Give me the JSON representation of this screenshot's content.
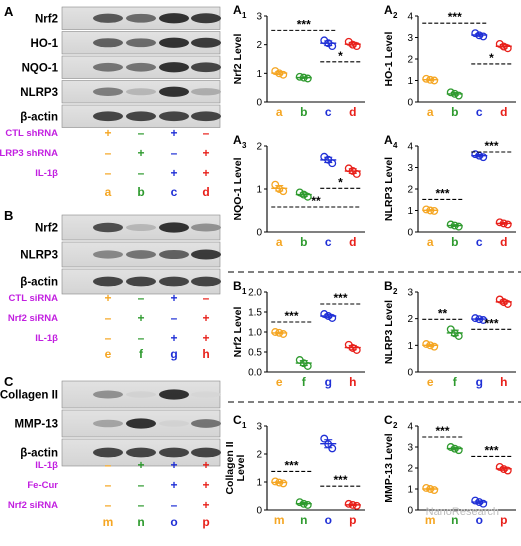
{
  "panels": {
    "A": {
      "label": "A",
      "blots": [
        "Nrf2",
        "HO-1",
        "NQO-1",
        "NLRP3",
        "β-actin"
      ],
      "treatments": [
        {
          "name": "CTL shRNA",
          "signs": [
            "+",
            "–",
            "+",
            "–"
          ]
        },
        {
          "name": "NLRP3 shRNA",
          "signs": [
            "–",
            "+",
            "–",
            "+"
          ]
        },
        {
          "name": "IL-1β",
          "signs": [
            "–",
            "–",
            "+",
            "+"
          ]
        }
      ],
      "groups": [
        "a",
        "b",
        "c",
        "d"
      ]
    },
    "B": {
      "label": "B",
      "blots": [
        "Nrf2",
        "NLRP3",
        "β-actin"
      ],
      "treatments": [
        {
          "name": "CTL siRNA",
          "signs": [
            "+",
            "–",
            "+",
            "–"
          ]
        },
        {
          "name": "Nrf2 siRNA",
          "signs": [
            "–",
            "+",
            "–",
            "+"
          ]
        },
        {
          "name": "IL-1β",
          "signs": [
            "–",
            "–",
            "+",
            "+"
          ]
        }
      ],
      "groups": [
        "e",
        "f",
        "g",
        "h"
      ]
    },
    "C": {
      "label": "C",
      "blots": [
        "Collagen II",
        "MMP-13",
        "β-actin"
      ],
      "treatments": [
        {
          "name": "IL-1β",
          "signs": [
            "–",
            "+",
            "+",
            "+"
          ]
        },
        {
          "name": "Fe-Cur",
          "signs": [
            "–",
            "–",
            "+",
            "+"
          ]
        },
        {
          "name": "Nrf2 siRNA",
          "signs": [
            "–",
            "–",
            "–",
            "+"
          ]
        }
      ],
      "groups": [
        "m",
        "n",
        "o",
        "p"
      ]
    }
  },
  "colors": {
    "g1": "#f5a623",
    "g2": "#2e9a2e",
    "g3": "#1f2fd6",
    "g4": "#e8201a",
    "treat": "#c21fe0"
  },
  "watermark": "NanoResearch",
  "chart_data": [
    {
      "id": "A1",
      "label": "A",
      "sub": "1",
      "type": "scatter",
      "ylabel": "Nrf2 Level",
      "categories": [
        "a",
        "b",
        "c",
        "d"
      ],
      "ylim": [
        0,
        3
      ],
      "yticks": [
        0,
        1,
        2,
        3
      ],
      "values": [
        [
          1.08,
          0.95,
          1.0
        ],
        [
          0.88,
          0.82,
          0.85
        ],
        [
          2.15,
          1.95,
          2.05
        ],
        [
          2.1,
          1.95,
          2.0
        ]
      ],
      "annotations": [
        {
          "text": "***",
          "from": 0,
          "to": 2
        },
        {
          "text": "*",
          "from": 2,
          "to": 3
        }
      ]
    },
    {
      "id": "A2",
      "label": "A",
      "sub": "2",
      "type": "scatter",
      "ylabel": "HO-1 Level",
      "categories": [
        "a",
        "b",
        "c",
        "d"
      ],
      "ylim": [
        0,
        4
      ],
      "yticks": [
        0,
        1,
        2,
        3,
        4
      ],
      "values": [
        [
          1.08,
          1.0,
          1.03
        ],
        [
          0.45,
          0.3,
          0.38
        ],
        [
          3.2,
          3.05,
          3.1
        ],
        [
          2.7,
          2.5,
          2.58
        ]
      ],
      "annotations": [
        {
          "text": "***",
          "from": 0,
          "to": 2
        },
        {
          "text": "*",
          "from": 2,
          "to": 3
        }
      ]
    },
    {
      "id": "A3",
      "label": "A",
      "sub": "3",
      "type": "scatter",
      "ylabel": "NQO-1 Level",
      "categories": [
        "a",
        "b",
        "c",
        "d"
      ],
      "ylim": [
        0,
        2
      ],
      "yticks": [
        0,
        1,
        2
      ],
      "values": [
        [
          1.1,
          0.95,
          1.0
        ],
        [
          0.92,
          0.82,
          0.87
        ],
        [
          1.75,
          1.6,
          1.68
        ],
        [
          1.48,
          1.35,
          1.42
        ]
      ],
      "annotations": [
        {
          "text": "**",
          "from": 0,
          "to": 3
        },
        {
          "text": "*",
          "from": 2,
          "to": 3
        }
      ]
    },
    {
      "id": "A4",
      "label": "A",
      "sub": "4",
      "type": "scatter",
      "ylabel": "NLRP3 Level",
      "categories": [
        "a",
        "b",
        "c",
        "d"
      ],
      "ylim": [
        0,
        4
      ],
      "yticks": [
        0,
        1,
        2,
        3,
        4
      ],
      "values": [
        [
          1.05,
          0.98,
          1.0
        ],
        [
          0.35,
          0.25,
          0.3
        ],
        [
          3.62,
          3.48,
          3.55
        ],
        [
          0.45,
          0.35,
          0.4
        ]
      ],
      "annotations": [
        {
          "text": "***",
          "from": 0,
          "to": 1
        },
        {
          "text": "***",
          "from": 2,
          "to": 3
        }
      ]
    },
    {
      "id": "B1",
      "label": "B",
      "sub": "1",
      "type": "scatter",
      "ylabel": "Nrf2 Level",
      "categories": [
        "e",
        "f",
        "g",
        "h"
      ],
      "ylim": [
        0,
        2
      ],
      "yticks": [
        0.0,
        0.5,
        1.0,
        1.5,
        2.0
      ],
      "values": [
        [
          1.0,
          0.95,
          0.98
        ],
        [
          0.3,
          0.15,
          0.22
        ],
        [
          1.45,
          1.35,
          1.4
        ],
        [
          0.68,
          0.55,
          0.6
        ]
      ],
      "annotations": [
        {
          "text": "***",
          "from": 0,
          "to": 1
        },
        {
          "text": "***",
          "from": 2,
          "to": 3
        }
      ]
    },
    {
      "id": "B2",
      "label": "B",
      "sub": "2",
      "type": "scatter",
      "ylabel": "NLRP3 Level",
      "categories": [
        "e",
        "f",
        "g",
        "h"
      ],
      "ylim": [
        0,
        3
      ],
      "yticks": [
        0,
        1,
        2,
        3
      ],
      "values": [
        [
          1.05,
          0.95,
          1.0
        ],
        [
          1.6,
          1.35,
          1.45
        ],
        [
          2.02,
          1.95,
          1.98
        ],
        [
          2.72,
          2.55,
          2.62
        ]
      ],
      "annotations": [
        {
          "text": "**",
          "from": 0,
          "to": 1
        },
        {
          "text": "***",
          "from": 2,
          "to": 3
        }
      ]
    },
    {
      "id": "C1",
      "label": "C",
      "sub": "1",
      "type": "scatter",
      "ylabel": "Collagen II Level",
      "categories": [
        "m",
        "n",
        "o",
        "p"
      ],
      "ylim": [
        0,
        3
      ],
      "yticks": [
        0,
        1,
        2,
        3
      ],
      "values": [
        [
          1.02,
          0.95,
          0.98
        ],
        [
          0.28,
          0.18,
          0.22
        ],
        [
          2.55,
          2.2,
          2.35
        ],
        [
          0.22,
          0.15,
          0.18
        ]
      ],
      "annotations": [
        {
          "text": "***",
          "from": 0,
          "to": 1
        },
        {
          "text": "***",
          "from": 2,
          "to": 3
        }
      ]
    },
    {
      "id": "C2",
      "label": "C",
      "sub": "2",
      "type": "scatter",
      "ylabel": "MMP-13 Level",
      "categories": [
        "m",
        "n",
        "o",
        "p"
      ],
      "ylim": [
        0,
        4
      ],
      "yticks": [
        0,
        1,
        2,
        3,
        4
      ],
      "values": [
        [
          1.05,
          0.95,
          1.0
        ],
        [
          3.0,
          2.85,
          2.92
        ],
        [
          0.45,
          0.3,
          0.38
        ],
        [
          2.05,
          1.88,
          1.95
        ]
      ],
      "annotations": [
        {
          "text": "***",
          "from": 0,
          "to": 1
        },
        {
          "text": "***",
          "from": 2,
          "to": 3
        }
      ]
    }
  ]
}
